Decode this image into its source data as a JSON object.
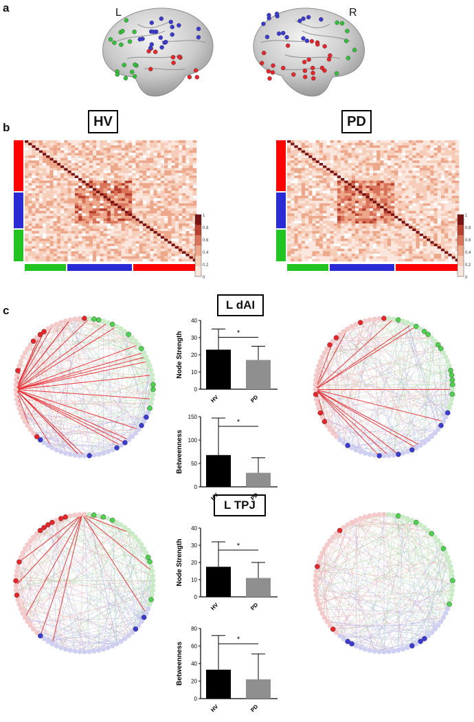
{
  "panels": {
    "a": "a",
    "b": "b",
    "c": "c"
  },
  "brain": {
    "left_label": "L",
    "right_label": "R"
  },
  "matrix_titles": {
    "hv": "HV",
    "pd": "PD"
  },
  "colorbar": {
    "ticks": [
      "1",
      "0.8",
      "0.6",
      "0.4",
      "0.2",
      "0"
    ]
  },
  "networks": {
    "colors": {
      "red": "#e8262a",
      "blue": "#3b3bd1",
      "green": "#33c13a"
    }
  },
  "sections": {
    "dai_title": "L dAI",
    "tpj_title": "L TPJ"
  },
  "chart_data": [
    {
      "type": "bar",
      "title": "L dAI",
      "categories": [
        "HV",
        "PD"
      ],
      "ylabel": "Node Strength",
      "ylim": [
        0,
        40
      ],
      "yticks": [
        "0",
        "10",
        "20",
        "30",
        "40"
      ],
      "values": [
        23,
        17
      ],
      "errors": [
        12,
        8
      ],
      "bar_colors": [
        "#000000",
        "#8f8f8f"
      ],
      "significance": "*"
    },
    {
      "type": "bar",
      "title": "L dAI",
      "categories": [
        "HV",
        "PD"
      ],
      "ylabel": "Betweenness",
      "ylim": [
        0,
        150
      ],
      "yticks": [
        "0",
        "50",
        "100",
        "150"
      ],
      "values": [
        68,
        30
      ],
      "errors": [
        79,
        32
      ],
      "bar_colors": [
        "#000000",
        "#8f8f8f"
      ],
      "significance": "*"
    },
    {
      "type": "bar",
      "title": "L TPJ",
      "categories": [
        "HV",
        "PD"
      ],
      "ylabel": "Node Strength",
      "ylim": [
        0,
        40
      ],
      "yticks": [
        "0",
        "10",
        "20",
        "30",
        "40"
      ],
      "values": [
        17.5,
        11
      ],
      "errors": [
        14.5,
        9
      ],
      "bar_colors": [
        "#000000",
        "#8f8f8f"
      ],
      "significance": "*"
    },
    {
      "type": "bar",
      "title": "L TPJ",
      "categories": [
        "HV",
        "PD"
      ],
      "ylabel": "Betweenness",
      "ylim": [
        0,
        80
      ],
      "yticks": [
        "0",
        "20",
        "40",
        "60",
        "80"
      ],
      "values": [
        33,
        22
      ],
      "errors": [
        39,
        29
      ],
      "bar_colors": [
        "#000000",
        "#8f8f8f"
      ],
      "significance": "*"
    }
  ]
}
